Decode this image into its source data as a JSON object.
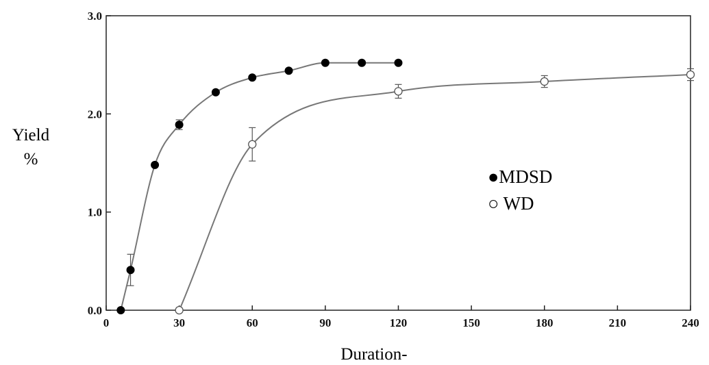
{
  "chart_data": {
    "type": "line",
    "title": "",
    "xlabel": "Duration-",
    "ylabel_line1": "Yield",
    "ylabel_line2": "%",
    "xlim": [
      0,
      240
    ],
    "ylim": [
      0,
      3
    ],
    "x_ticks": [
      0,
      30,
      60,
      90,
      120,
      150,
      180,
      210,
      240
    ],
    "y_ticks": [
      0,
      1,
      2,
      3
    ],
    "y_tick_labels": [
      "0.0",
      "1.0",
      "2.0",
      "3.0"
    ],
    "grid": false,
    "legend_position": "right-center",
    "series": [
      {
        "name": "MDSD",
        "marker": "filled-circle",
        "legend_label": "●MDSD",
        "color": "#000000",
        "x": [
          6,
          10,
          20,
          30,
          45,
          60,
          75,
          90,
          105,
          120
        ],
        "y": [
          0.0,
          0.41,
          1.48,
          1.89,
          2.22,
          2.37,
          2.44,
          2.52,
          2.52,
          2.52
        ],
        "error": [
          0,
          0.16,
          0,
          0.05,
          0,
          0,
          0,
          0,
          0,
          0
        ]
      },
      {
        "name": "WD",
        "marker": "open-circle",
        "legend_label": "○ WD",
        "color": "#000000",
        "x": [
          30,
          60,
          120,
          180,
          240
        ],
        "y": [
          0.0,
          1.69,
          2.23,
          2.33,
          2.4
        ],
        "error": [
          0,
          0.17,
          0.07,
          0.06,
          0.06
        ]
      }
    ],
    "line_color": "#777777"
  }
}
